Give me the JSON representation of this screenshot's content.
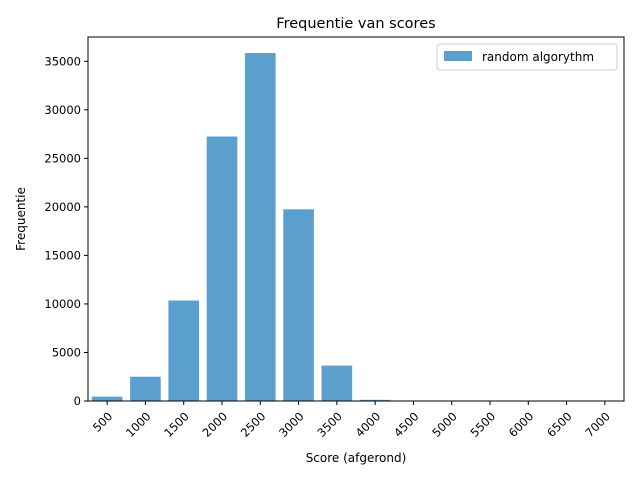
{
  "chart_data": {
    "type": "bar",
    "title": "Frequentie van scores",
    "xlabel": "Score (afgerond)",
    "ylabel": "Frequentie",
    "categories": [
      "500",
      "1000",
      "1500",
      "2000",
      "2500",
      "3000",
      "3500",
      "4000",
      "4500",
      "5000",
      "5500",
      "6000",
      "6500",
      "7000"
    ],
    "series": [
      {
        "name": "random algorythm",
        "color": "#5b9fcf",
        "values": [
          450,
          2500,
          10350,
          27250,
          35850,
          19750,
          3650,
          120,
          5,
          0,
          0,
          0,
          0,
          0
        ]
      }
    ],
    "ylim": [
      0,
      37500
    ],
    "yticks": [
      0,
      5000,
      10000,
      15000,
      20000,
      25000,
      30000,
      35000
    ],
    "grid": false,
    "legend_position": "top-right"
  }
}
